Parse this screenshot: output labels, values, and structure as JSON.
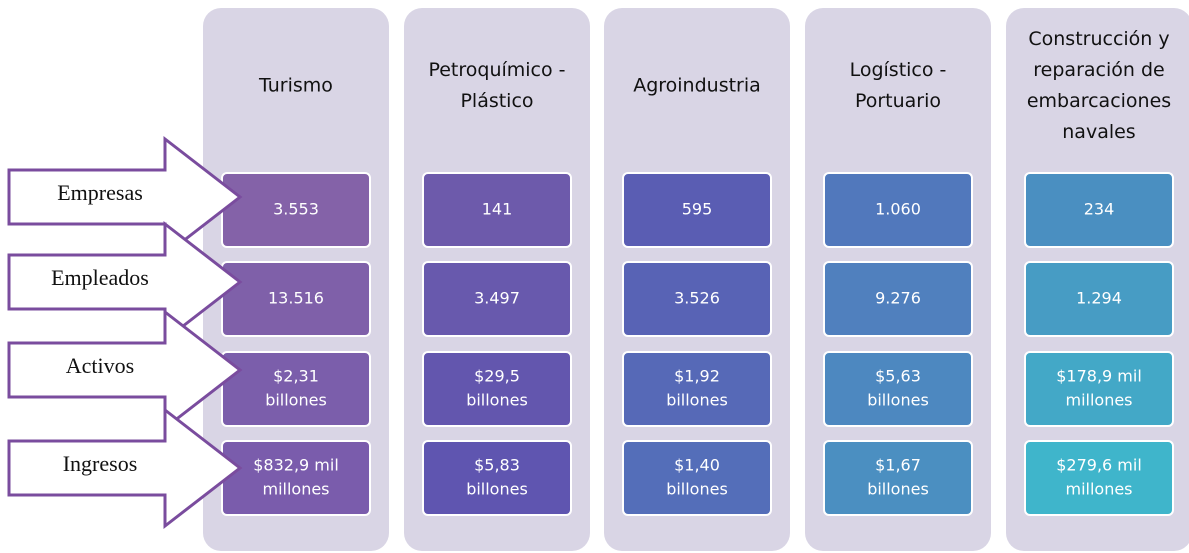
{
  "rows": [
    "Empresas",
    "Empleados",
    "Activos",
    "Ingresos"
  ],
  "columns": [
    {
      "header": [
        "Turismo"
      ],
      "cells": [
        [
          "3.553"
        ],
        [
          "13.516"
        ],
        [
          "$2,31",
          "billones"
        ],
        [
          "$832,9 mil",
          "millones"
        ]
      ],
      "colors": [
        "#8462a8",
        "#7f60a9",
        "#7b5eab",
        "#7a5cac"
      ]
    },
    {
      "header": [
        "Petroquímico -",
        "Plástico"
      ],
      "cells": [
        [
          "141"
        ],
        [
          "3.497"
        ],
        [
          "$29,5",
          "billones"
        ],
        [
          "$5,83",
          "billones"
        ]
      ],
      "colors": [
        "#6d5aab",
        "#6859ad",
        "#6356ae",
        "#5f55b0"
      ]
    },
    {
      "header": [
        "Agroindustria"
      ],
      "cells": [
        [
          "595"
        ],
        [
          "3.526"
        ],
        [
          "$1,92",
          "billones"
        ],
        [
          "$1,40",
          "billones"
        ]
      ],
      "colors": [
        "#5a5db3",
        "#5863b5",
        "#5669b7",
        "#546eb9"
      ]
    },
    {
      "header": [
        "Logístico -",
        "Portuario"
      ],
      "cells": [
        [
          "1.060"
        ],
        [
          "9.276"
        ],
        [
          "$5,63",
          "billones"
        ],
        [
          "$1,67",
          "billones"
        ]
      ],
      "colors": [
        "#5178bc",
        "#5080be",
        "#4d88c0",
        "#4b8fc1"
      ]
    },
    {
      "header": [
        "Construcción y",
        "reparación de",
        "embarcaciones",
        "navales"
      ],
      "cells": [
        [
          "234"
        ],
        [
          "1.294"
        ],
        [
          "$178,9 mil",
          "millones"
        ],
        [
          "$279,6 mil",
          "millones"
        ]
      ],
      "colors": [
        "#4a8fc1",
        "#479cc4",
        "#43a8c7",
        "#3fb5cb"
      ]
    }
  ]
}
